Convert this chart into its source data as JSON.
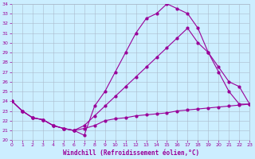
{
  "bg_color": "#cceeff",
  "line_color": "#990099",
  "grid_color": "#aabbcc",
  "xlabel": "Windchill (Refroidissement éolien,°C)",
  "xlim": [
    0,
    23
  ],
  "ylim": [
    20,
    34
  ],
  "xticks": [
    0,
    1,
    2,
    3,
    4,
    5,
    6,
    7,
    8,
    9,
    10,
    11,
    12,
    13,
    14,
    15,
    16,
    17,
    18,
    19,
    20,
    21,
    22,
    23
  ],
  "yticks": [
    20,
    21,
    22,
    23,
    24,
    25,
    26,
    27,
    28,
    29,
    30,
    31,
    32,
    33,
    34
  ],
  "line1_x": [
    0,
    1,
    2,
    3,
    4,
    5,
    6,
    7,
    8,
    9,
    10,
    11,
    12,
    13,
    14,
    15,
    16,
    17,
    18,
    19,
    20,
    21,
    22,
    23
  ],
  "line1_y": [
    24.0,
    23.0,
    22.3,
    22.1,
    21.5,
    21.2,
    21.0,
    21.2,
    21.5,
    22.0,
    22.2,
    22.3,
    22.5,
    22.6,
    22.7,
    22.8,
    23.0,
    23.1,
    23.2,
    23.3,
    23.4,
    23.5,
    23.6,
    23.7
  ],
  "line2_x": [
    0,
    1,
    2,
    3,
    4,
    5,
    6,
    7,
    8,
    9,
    10,
    11,
    12,
    13,
    14,
    15,
    16,
    17,
    18,
    19,
    20,
    21,
    22,
    23
  ],
  "line2_y": [
    24.0,
    23.0,
    22.3,
    22.1,
    21.5,
    21.2,
    21.0,
    20.5,
    23.5,
    25.0,
    27.0,
    29.0,
    31.0,
    32.5,
    33.0,
    34.0,
    33.5,
    33.0,
    31.5,
    29.0,
    27.5,
    26.0,
    25.5,
    23.7
  ],
  "line3_x": [
    0,
    1,
    2,
    3,
    4,
    5,
    6,
    7,
    8,
    9,
    10,
    11,
    12,
    13,
    14,
    15,
    16,
    17,
    18,
    19,
    20,
    21,
    22,
    23
  ],
  "line3_y": [
    24.0,
    23.0,
    22.3,
    22.1,
    21.5,
    21.2,
    21.0,
    21.5,
    22.5,
    23.5,
    24.5,
    25.5,
    26.5,
    27.5,
    28.5,
    29.5,
    30.5,
    31.5,
    30.0,
    29.0,
    27.0,
    25.0,
    23.7,
    23.7
  ]
}
